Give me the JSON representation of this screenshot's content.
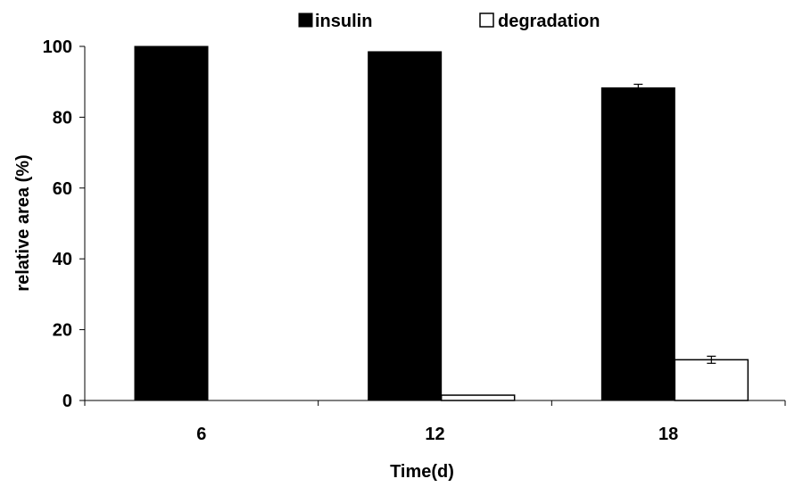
{
  "chart_data": {
    "type": "bar",
    "categories": [
      "6",
      "12",
      "18"
    ],
    "series": [
      {
        "name": "insulin",
        "values": [
          100,
          98.5,
          88.3
        ],
        "errors": [
          0,
          0,
          1.0
        ],
        "fill": "#000000"
      },
      {
        "name": "degradation",
        "values": [
          0,
          1.5,
          11.5
        ],
        "errors": [
          0,
          0,
          1.0
        ],
        "fill": "#ffffff"
      }
    ],
    "xlabel": "Time(d)",
    "ylabel": "relative area (%)",
    "ylim": [
      0,
      100
    ],
    "yticks": [
      0,
      20,
      40,
      60,
      80,
      100
    ],
    "grid": false,
    "legend_position": "top-center",
    "colors": {
      "axis": "#000000",
      "bar_stroke": "#000000"
    }
  }
}
